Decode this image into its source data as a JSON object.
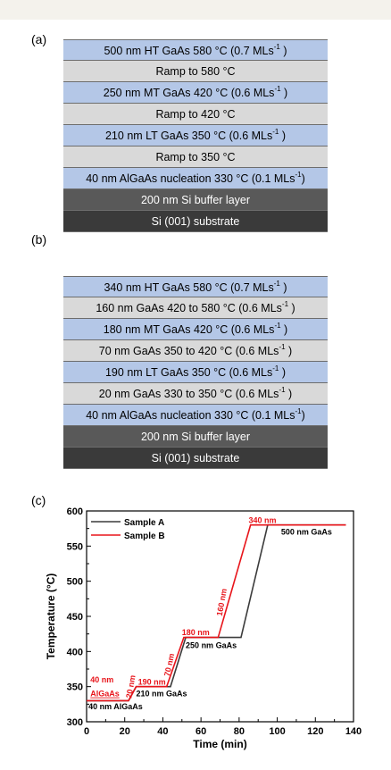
{
  "panel_labels": {
    "a": "(a)",
    "b": "(b)",
    "c": "(c)"
  },
  "stack_a": [
    {
      "text": "500 nm HT GaAs 580 °C (0.7 MLs",
      "sup": "-1",
      "tail": " )",
      "style": "blue"
    },
    {
      "text": "Ramp to 580 °C",
      "sup": "",
      "tail": "",
      "style": "light"
    },
    {
      "text": "250 nm MT GaAs 420 °C (0.6 MLs",
      "sup": "-1",
      "tail": " )",
      "style": "blue"
    },
    {
      "text": "Ramp to 420 °C",
      "sup": "",
      "tail": "",
      "style": "light"
    },
    {
      "text": "210 nm LT GaAs 350 °C (0.6 MLs",
      "sup": "-1",
      "tail": " )",
      "style": "blue"
    },
    {
      "text": "Ramp to 350 °C",
      "sup": "",
      "tail": "",
      "style": "light"
    },
    {
      "text": "40 nm AlGaAs nucleation 330 °C (0.1 MLs",
      "sup": "-1",
      "tail": ")",
      "style": "blue"
    },
    {
      "text": "200 nm Si buffer layer",
      "sup": "",
      "tail": "",
      "style": "dark"
    },
    {
      "text": "Si (001) substrate",
      "sup": "",
      "tail": "",
      "style": "darker"
    }
  ],
  "stack_b": [
    {
      "text": "340 nm HT GaAs 580 °C  (0.7 MLs",
      "sup": "-1",
      "tail": " )",
      "style": "blue"
    },
    {
      "text": "160 nm GaAs 420 to 580 °C   (0.6 MLs",
      "sup": "-1",
      "tail": " )",
      "style": "light"
    },
    {
      "text": "180 nm MT GaAs 420 °C  (0.6 MLs",
      "sup": "-1",
      "tail": " )",
      "style": "blue"
    },
    {
      "text": "70 nm GaAs 350 to 420 °C  (0.6 MLs",
      "sup": "-1",
      "tail": " )",
      "style": "light"
    },
    {
      "text": "190 nm LT GaAs 350 °C  (0.6 MLs",
      "sup": "-1",
      "tail": " )",
      "style": "blue"
    },
    {
      "text": "20 nm GaAs 330 to 350 °C  (0.6 MLs",
      "sup": "-1",
      "tail": " )",
      "style": "light"
    },
    {
      "text": "40 nm AlGaAs nucleation 330 °C  (0.1 MLs",
      "sup": "-1",
      "tail": ")",
      "style": "blue"
    },
    {
      "text": "200 nm Si buffer layer",
      "sup": "",
      "tail": "",
      "style": "dark"
    },
    {
      "text": "Si (001) substrate",
      "sup": "",
      "tail": "",
      "style": "darker"
    }
  ],
  "chart_data": {
    "type": "line",
    "xlabel": "Time (min)",
    "ylabel": "Temperature (°C)",
    "xlim": [
      0,
      140
    ],
    "ylim": [
      300,
      600
    ],
    "xticks": [
      0,
      20,
      40,
      60,
      80,
      100,
      120,
      140
    ],
    "yticks": [
      300,
      350,
      400,
      450,
      500,
      550,
      600
    ],
    "legend_position": "top-left",
    "series": [
      {
        "name": "Sample A",
        "color": "#3c3c3c",
        "x": [
          0,
          22,
          26,
          44,
          52,
          81,
          95,
          136
        ],
        "y": [
          330,
          330,
          350,
          350,
          420,
          420,
          580,
          580
        ]
      },
      {
        "name": "Sample B",
        "color": "#e8151b",
        "x": [
          0,
          22,
          26,
          42,
          51,
          69,
          86,
          136
        ],
        "y": [
          330,
          330,
          350,
          350,
          420,
          420,
          580,
          580
        ]
      }
    ],
    "annotations": [
      {
        "text": "40 nm",
        "x": 2,
        "y": 356,
        "color": "#e8151b",
        "rotate": 0
      },
      {
        "text": "AlGaAs",
        "x": 2,
        "y": 336,
        "color": "#e8151b",
        "rotate": 0,
        "underline": true
      },
      {
        "text": "40 nm AlGaAs",
        "x": 1,
        "y": 318,
        "color": "#000000",
        "rotate": 0
      },
      {
        "text": "20 nm",
        "x": 23.5,
        "y": 333,
        "color": "#e8151b",
        "rotate": -80
      },
      {
        "text": "190 nm",
        "x": 27,
        "y": 353,
        "color": "#e8151b",
        "rotate": 0
      },
      {
        "text": "210 nm GaAs",
        "x": 26,
        "y": 336,
        "color": "#000000",
        "rotate": 0
      },
      {
        "text": "70 nm",
        "x": 43.5,
        "y": 364,
        "color": "#e8151b",
        "rotate": -78
      },
      {
        "text": "180 nm",
        "x": 50,
        "y": 423,
        "color": "#e8151b",
        "rotate": 0
      },
      {
        "text": "250 nm GaAs",
        "x": 52,
        "y": 405,
        "color": "#000000",
        "rotate": 0
      },
      {
        "text": "160 nm",
        "x": 71,
        "y": 450,
        "color": "#e8151b",
        "rotate": -80
      },
      {
        "text": "340 nm",
        "x": 85,
        "y": 583,
        "color": "#e8151b",
        "rotate": 0
      },
      {
        "text": "500 nm GaAs",
        "x": 102,
        "y": 566,
        "color": "#000000",
        "rotate": 0
      }
    ]
  }
}
